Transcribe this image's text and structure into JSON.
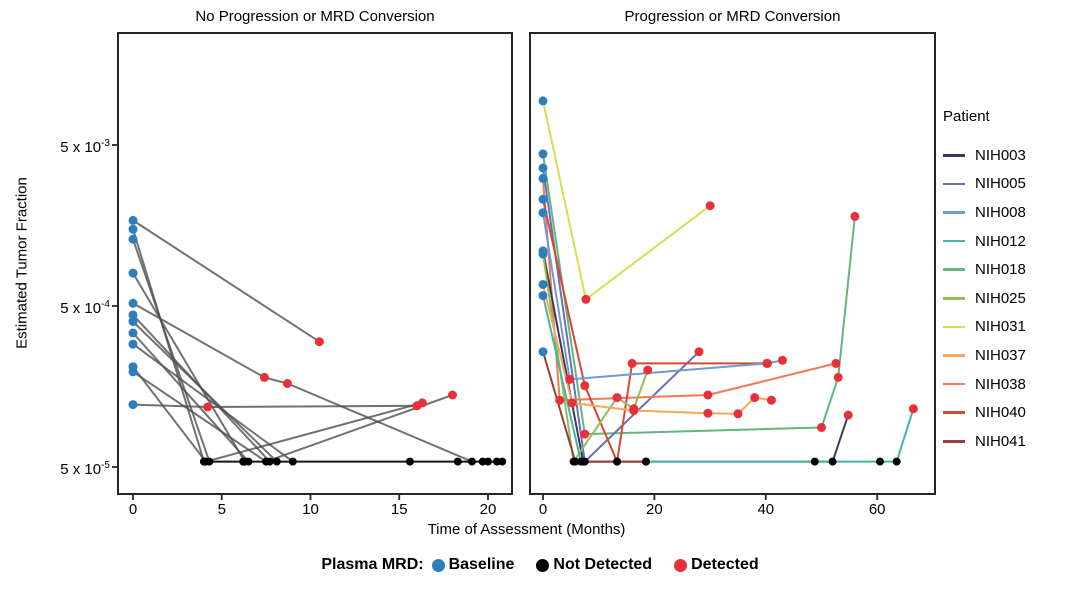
{
  "chart_data": {
    "type": "line",
    "title": "",
    "xlabel": "Time of Assessment (Months)",
    "ylabel": "Estimated Tumor Fraction",
    "y_scale": "log",
    "grid": false,
    "y_ticks": [
      {
        "mantissa": "5 x 10",
        "exponent": "-3",
        "value": 0.005
      },
      {
        "mantissa": "5 x 10",
        "exponent": "-4",
        "value": 0.0005
      },
      {
        "mantissa": "5 x 10",
        "exponent": "-5",
        "value": 5e-05
      }
    ],
    "marker_colors": {
      "B": "#2e7ebd",
      "N": "#000000",
      "D": "#e8303a"
    },
    "marker_states": {
      "B": "Baseline",
      "N": "Not Detected",
      "D": "Detected"
    },
    "facets": [
      {
        "title": "No Progression or MRD Conversion",
        "x_ticks": [
          0,
          5,
          10,
          15,
          20
        ],
        "x_max": 21.3,
        "series": [
          {
            "patient": null,
            "color": "#4f4f4f",
            "opacity": 0.8,
            "points": [
              [
                0,
                0.0017,
                "B"
              ],
              [
                10.5,
                0.0003,
                "D"
              ]
            ]
          },
          {
            "patient": null,
            "color": "#4f4f4f",
            "opacity": 0.8,
            "points": [
              [
                0,
                0.0015,
                "B"
              ],
              [
                4.0,
                5.4e-05,
                "N"
              ]
            ]
          },
          {
            "patient": null,
            "color": "#4f4f4f",
            "opacity": 0.8,
            "points": [
              [
                0,
                0.0013,
                "B"
              ],
              [
                4.3,
                5.4e-05,
                "N"
              ]
            ]
          },
          {
            "patient": null,
            "color": "#4f4f4f",
            "opacity": 0.8,
            "points": [
              [
                0,
                0.0008,
                "B"
              ],
              [
                6.3,
                5.4e-05,
                "N"
              ]
            ]
          },
          {
            "patient": null,
            "color": "#4f4f4f",
            "opacity": 0.8,
            "points": [
              [
                0,
                0.00052,
                "B"
              ],
              [
                7.4,
                0.00018,
                "D"
              ],
              [
                8.7,
                0.000165,
                "D"
              ],
              [
                19.1,
                5.4e-05,
                "N"
              ]
            ]
          },
          {
            "patient": null,
            "color": "#4f4f4f",
            "opacity": 0.8,
            "points": [
              [
                0,
                0.00044,
                "B"
              ],
              [
                7.7,
                5.4e-05,
                "N"
              ]
            ]
          },
          {
            "patient": null,
            "color": "#4f4f4f",
            "opacity": 0.8,
            "points": [
              [
                0,
                0.0004,
                "B"
              ],
              [
                8.1,
                5.4e-05,
                "N"
              ]
            ]
          },
          {
            "patient": null,
            "color": "#4f4f4f",
            "opacity": 0.8,
            "points": [
              [
                0,
                0.00034,
                "B"
              ],
              [
                6.5,
                5.4e-05,
                "N"
              ]
            ]
          },
          {
            "patient": null,
            "color": "#4f4f4f",
            "opacity": 0.8,
            "points": [
              [
                0,
                0.00029,
                "B"
              ],
              [
                9.0,
                5.4e-05,
                "N"
              ]
            ]
          },
          {
            "patient": null,
            "color": "#4f4f4f",
            "opacity": 0.8,
            "points": [
              [
                0,
                0.00021,
                "B"
              ],
              [
                4.1,
                5.4e-05,
                "N"
              ],
              [
                16.3,
                0.000125,
                "D"
              ]
            ]
          },
          {
            "patient": null,
            "color": "#4f4f4f",
            "opacity": 0.8,
            "points": [
              [
                0,
                0.000195,
                "B"
              ],
              [
                7.5,
                5.4e-05,
                "N"
              ],
              [
                18.0,
                0.00014,
                "D"
              ]
            ]
          },
          {
            "patient": null,
            "color": "#4f4f4f",
            "opacity": 0.8,
            "points": [
              [
                0,
                0.000122,
                "B"
              ],
              [
                4.2,
                0.000118,
                "D"
              ],
              [
                16.0,
                0.00012,
                "D"
              ]
            ]
          },
          {
            "patient": null,
            "color": "#161616",
            "opacity": 1,
            "points": [
              [
                4.0,
                5.4e-05,
                "N"
              ],
              [
                6.2,
                5.4e-05,
                "N"
              ],
              [
                15.6,
                5.4e-05,
                "N"
              ],
              [
                18.3,
                5.4e-05,
                "N"
              ],
              [
                19.7,
                5.4e-05,
                "N"
              ],
              [
                20.0,
                5.4e-05,
                "N"
              ],
              [
                20.5,
                5.4e-05,
                "N"
              ],
              [
                20.8,
                5.4e-05,
                "N"
              ]
            ]
          }
        ]
      },
      {
        "title": "Progression or MRD Conversion",
        "x_ticks": [
          0,
          20,
          40,
          60
        ],
        "x_max": 70.4,
        "series": [
          {
            "patient": "NIH031",
            "color": "#d7de52",
            "opacity": 1,
            "points": [
              [
                0,
                0.0094,
                "B"
              ],
              [
                7.7,
                0.00055,
                "D"
              ],
              [
                30,
                0.0021,
                "D"
              ]
            ]
          },
          {
            "patient": "NIH018",
            "color": "#63b57f",
            "opacity": 1,
            "points": [
              [
                0,
                0.0044,
                "B"
              ],
              [
                7.5,
                8e-05,
                "D"
              ],
              [
                50,
                8.8e-05,
                "D"
              ],
              [
                53,
                0.00018,
                "D"
              ],
              [
                56,
                0.0018,
                "D"
              ]
            ]
          },
          {
            "patient": "NIH005",
            "color": "#6672b5",
            "opacity": 1,
            "points": [
              [
                0,
                0.0036,
                "B"
              ],
              [
                7.5,
                5.4e-05,
                "N"
              ],
              [
                28,
                0.00026,
                "D"
              ]
            ]
          },
          {
            "patient": "NIH038",
            "color": "#f37a50",
            "opacity": 1,
            "points": [
              [
                0,
                0.0031,
                "B"
              ],
              [
                3.0,
                0.00013,
                "D"
              ],
              [
                29.6,
                0.00014,
                "D"
              ],
              [
                52.6,
                0.00022,
                "D"
              ]
            ]
          },
          {
            "patient": "NIH040",
            "color": "#d34a32",
            "opacity": 1,
            "points": [
              [
                0,
                0.0023,
                "B"
              ],
              [
                7.5,
                0.00016,
                "D"
              ],
              [
                13.3,
                5.4e-05,
                "N"
              ],
              [
                16.0,
                0.00022,
                "D"
              ],
              [
                40.2,
                0.00022,
                "D"
              ]
            ]
          },
          {
            "patient": "NIH008",
            "color": "#6f9ad2",
            "opacity": 1,
            "points": [
              [
                0,
                0.0019,
                "B"
              ],
              [
                4.8,
                0.000175,
                "D"
              ],
              [
                40.3,
                0.00022,
                "D"
              ],
              [
                43.0,
                0.00023,
                "D"
              ]
            ]
          },
          {
            "patient": "NIH003",
            "color": "#433561",
            "opacity": 1,
            "points": [
              [
                0,
                0.0011,
                "B"
              ],
              [
                7.2,
                5.4e-05,
                "N"
              ],
              [
                52.0,
                5.4e-05,
                "N"
              ],
              [
                54.8,
                0.000105,
                "D"
              ]
            ]
          },
          {
            "patient": "NIH025",
            "color": "#8fc152",
            "opacity": 1,
            "points": [
              [
                0,
                0.00105,
                "B"
              ],
              [
                5.5,
                5.4e-05,
                "N"
              ],
              [
                13.3,
                0.000135,
                "D"
              ],
              [
                16.3,
                0.000115,
                "D"
              ],
              [
                18.8,
                0.0002,
                "D"
              ]
            ]
          },
          {
            "patient": "NIH037",
            "color": "#f7a75c",
            "opacity": 1,
            "points": [
              [
                0,
                0.00068,
                "B"
              ],
              [
                5.2,
                0.000125,
                "D"
              ],
              [
                16.3,
                0.000112,
                "D"
              ],
              [
                29.6,
                0.000108,
                "D"
              ],
              [
                35.0,
                0.000107,
                "D"
              ],
              [
                38.0,
                0.000135,
                "D"
              ],
              [
                41.0,
                0.00013,
                "D"
              ]
            ]
          },
          {
            "patient": "NIH012",
            "color": "#45b5ab",
            "opacity": 1,
            "points": [
              [
                0,
                0.00058,
                "B"
              ],
              [
                6.8,
                5.4e-05,
                "N"
              ],
              [
                18.5,
                5.4e-05,
                "N"
              ],
              [
                48.8,
                5.4e-05,
                "N"
              ],
              [
                60.5,
                5.4e-05,
                "N"
              ],
              [
                63.5,
                5.4e-05,
                "N"
              ],
              [
                66.5,
                0.000115,
                "D"
              ]
            ]
          },
          {
            "patient": "NIH041",
            "color": "#9c3d33",
            "opacity": 1,
            "points": [
              [
                0,
                0.00026,
                "B"
              ],
              [
                5.8,
                5.4e-05,
                "N"
              ],
              [
                13.3,
                5.4e-05,
                "N"
              ],
              [
                18.5,
                5.4e-05,
                "N"
              ]
            ]
          }
        ]
      }
    ],
    "patient_legend": {
      "title": "Patient",
      "items": [
        {
          "label": "NIH003",
          "color": "#433561"
        },
        {
          "label": "NIH005",
          "color": "#6672b5"
        },
        {
          "label": "NIH008",
          "color": "#6f9ad2"
        },
        {
          "label": "NIH012",
          "color": "#45b5ab"
        },
        {
          "label": "NIH018",
          "color": "#63b57f"
        },
        {
          "label": "NIH025",
          "color": "#8fc152"
        },
        {
          "label": "NIH031",
          "color": "#d7de52"
        },
        {
          "label": "NIH037",
          "color": "#f7a75c"
        },
        {
          "label": "NIH038",
          "color": "#f37a50"
        },
        {
          "label": "NIH040",
          "color": "#d34a32"
        },
        {
          "label": "NIH041",
          "color": "#9c3d33"
        }
      ]
    },
    "mrd_legend": {
      "title": "Plasma MRD:",
      "items": [
        {
          "label": "Baseline",
          "state": "B"
        },
        {
          "label": "Not Detected",
          "state": "N"
        },
        {
          "label": "Detected",
          "state": "D"
        }
      ]
    }
  }
}
